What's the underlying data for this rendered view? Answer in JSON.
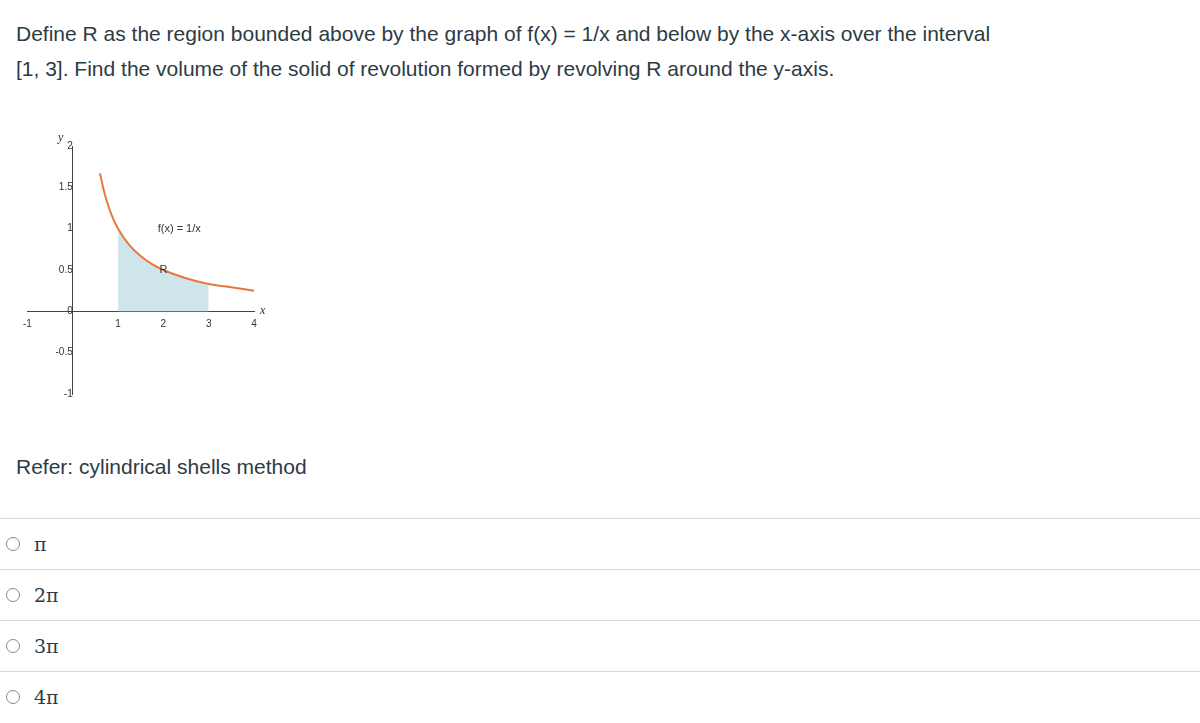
{
  "question": {
    "lines": [
      "Define R as the region bounded above by the graph of f(x) = 1/x and below by the x-axis over the interval",
      "[1, 3]. Find the volume of the solid of revolution formed by revolving R around the y-axis."
    ]
  },
  "chart_data": {
    "type": "line",
    "x_label": "x",
    "y_label": "y",
    "annotations": [
      "f(x) = 1/x",
      "R"
    ],
    "series": [
      {
        "type": "line",
        "color": "#e8773d",
        "x": [
          0.6,
          0.7,
          0.8,
          0.9,
          1,
          1.25,
          1.5,
          1.75,
          2,
          2.5,
          3,
          3.5,
          4
        ],
        "values": [
          1.67,
          1.43,
          1.25,
          1.11,
          1,
          0.8,
          0.67,
          0.57,
          0.5,
          0.4,
          0.33,
          0.29,
          0.25
        ]
      },
      {
        "type": "area",
        "color": "#cfe5ec",
        "x": [
          1,
          1.25,
          1.5,
          1.75,
          2,
          2.5,
          3
        ],
        "values": [
          1,
          0.8,
          0.67,
          0.57,
          0.5,
          0.4,
          0.33
        ]
      }
    ],
    "xlim": [
      -1,
      4
    ],
    "ylim": [
      -1,
      2
    ],
    "xticks": [
      -1,
      0,
      1,
      2,
      3,
      4
    ],
    "yticks": [
      -1,
      -0.5,
      0,
      0.5,
      1,
      1.5,
      2
    ],
    "grid": false
  },
  "hint": "Refer: cylindrical shells method",
  "options": [
    "π",
    "2π",
    "3π",
    "4π"
  ]
}
